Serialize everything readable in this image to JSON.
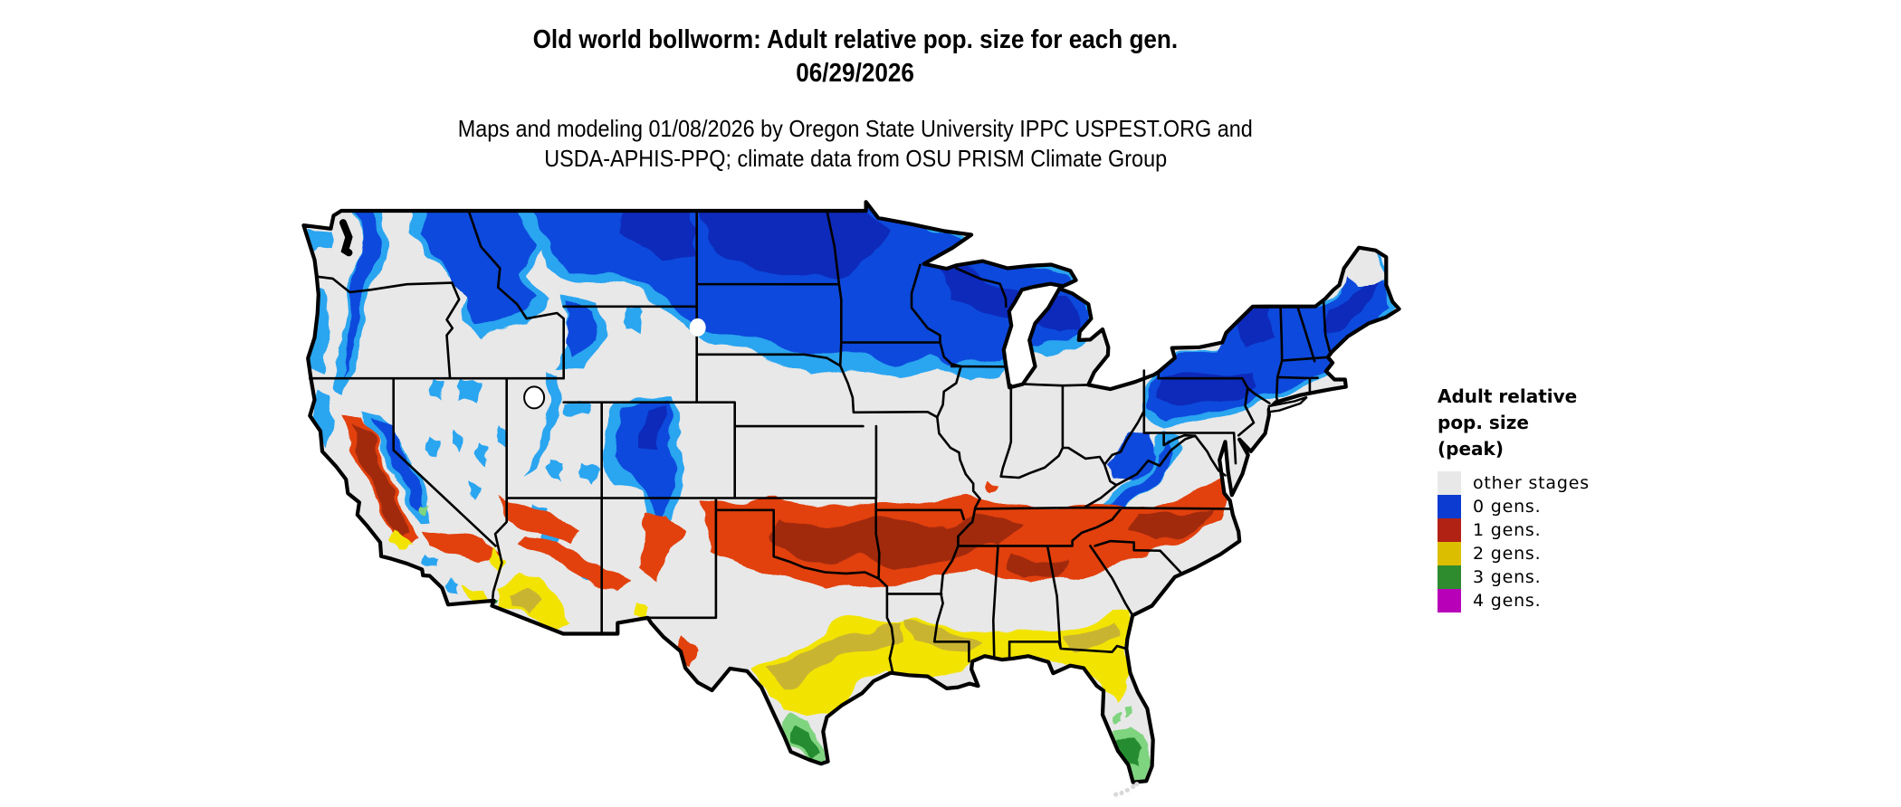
{
  "title": {
    "line1": "Old world bollworm: Adult relative pop. size for each gen.",
    "date": "06/29/2026"
  },
  "subtitle": {
    "line1": "Maps and modeling 01/08/2026 by Oregon State University IPPC USPEST.ORG and",
    "line2": "USDA-APHIS-PPQ; climate data from OSU PRISM Climate Group"
  },
  "legend": {
    "title_lines": [
      "Adult relative",
      "pop. size",
      "(peak)"
    ],
    "items": [
      {
        "label": "other stages",
        "color": "#e8e8e8"
      },
      {
        "label": "0 gens.",
        "color": "#0b3bd0"
      },
      {
        "label": "1 gens.",
        "color": "#b22214"
      },
      {
        "label": "2 gens.",
        "color": "#dcbe00"
      },
      {
        "label": "3 gens.",
        "color": "#2e8b2e"
      },
      {
        "label": "4 gens.",
        "color": "#b800b8"
      }
    ]
  },
  "map": {
    "kind": "us-generation-choropleth",
    "palette": {
      "land": "#e8e8e8",
      "water": "#ffffff",
      "line": "#000000",
      "g0a": "#2aa5f0",
      "g0b": "#0d49dc",
      "g0c": "#0a2cbb",
      "g1a": "#e2410e",
      "g1b": "#a12a10",
      "g2a": "#f2e400",
      "g2b": "#c9b433",
      "g3a": "#7fd47f",
      "g3b": "#268c32",
      "g4": "#bf00bf"
    }
  }
}
